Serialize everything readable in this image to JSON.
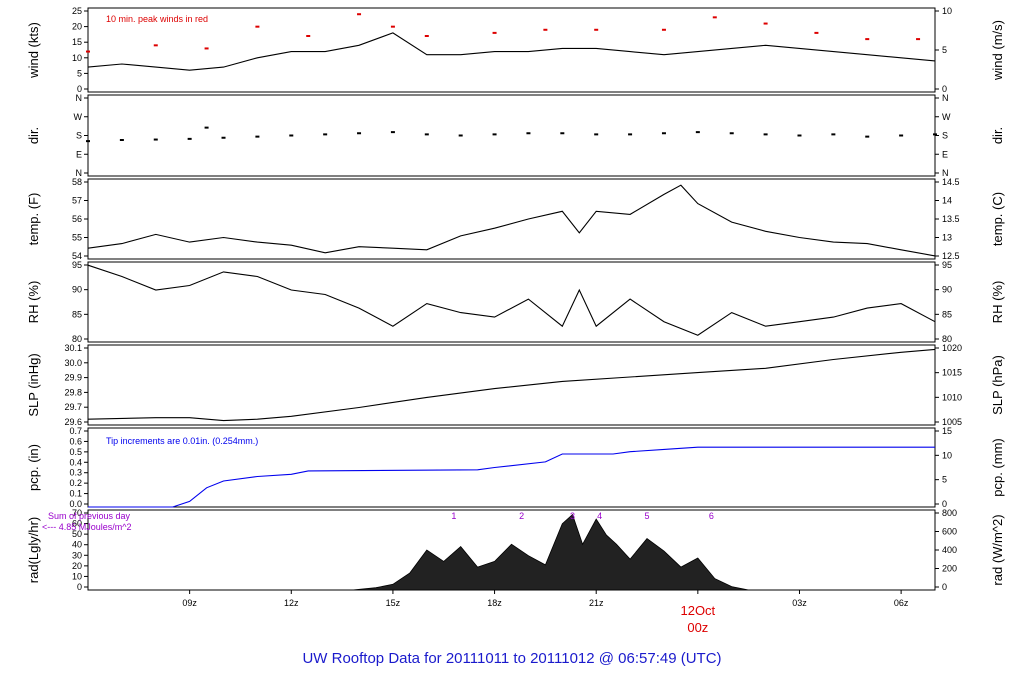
{
  "footer": {
    "title_text": "UW Rooftop Data for 20111011  to  20111012 @ 06:57:49  (UTC)"
  },
  "colors": {
    "line": "#000000",
    "peak": "#dd0000",
    "precip": "#0000ee",
    "annotation_purple": "#9900cc",
    "date_red": "#dd0000",
    "title_blue": "#1a1acc"
  },
  "chart_data": [
    {
      "type": "line",
      "panel": "wind",
      "ylabel_left": "wind (kts)",
      "ylabel_right": "wind (m/s)",
      "left_ticks": [
        "0",
        "5",
        "10",
        "15",
        "20",
        "25"
      ],
      "right_ticks": [
        "0",
        "5",
        "10"
      ],
      "ylim": [
        0,
        27
      ],
      "annotation": "10 min. peak winds in red",
      "series": [
        {
          "x_hours": [
            6,
            7,
            8,
            9,
            10,
            11,
            12,
            13,
            14,
            15,
            16,
            17,
            18,
            19,
            20,
            21,
            22,
            23,
            24,
            25,
            26,
            27,
            28,
            29,
            30,
            31
          ],
          "values": [
            8,
            9,
            8,
            7,
            8,
            11,
            13,
            13,
            15,
            19,
            12,
            12,
            13,
            13,
            14,
            14,
            13,
            12,
            13,
            14,
            15,
            14,
            13,
            12,
            11,
            10
          ]
        }
      ],
      "peaks": {
        "x_hours": [
          6,
          8,
          9.5,
          11,
          12.5,
          14,
          15,
          16,
          18,
          19.5,
          21,
          23,
          24.5,
          26,
          27.5,
          29,
          30.5
        ],
        "values": [
          13,
          15,
          14,
          21,
          18,
          25,
          21,
          18,
          19,
          20,
          20,
          20,
          24,
          22,
          19,
          17,
          17
        ]
      }
    },
    {
      "type": "scatter",
      "panel": "dir",
      "ylabel_left": "dir.",
      "ylabel_right": "dir.",
      "left_ticks": [
        "N",
        "E",
        "S",
        "W",
        "N"
      ],
      "right_ticks": [
        "N",
        "E",
        "S",
        "W",
        "N"
      ],
      "ylim": [
        0,
        360
      ],
      "series": [
        {
          "x_hours": [
            6,
            7,
            8,
            9,
            9.5,
            10,
            11,
            12,
            13,
            14,
            15,
            16,
            17,
            18,
            19,
            20,
            21,
            22,
            23,
            24,
            25,
            26,
            27,
            28,
            29,
            30,
            31
          ],
          "values": [
            155,
            160,
            162,
            165,
            215,
            170,
            175,
            180,
            185,
            190,
            195,
            185,
            180,
            185,
            190,
            190,
            185,
            185,
            190,
            195,
            190,
            185,
            180,
            185,
            175,
            180,
            185
          ]
        }
      ]
    },
    {
      "type": "line",
      "panel": "temp",
      "ylabel_left": "temp. (F)",
      "ylabel_right": "temp. (C)",
      "left_ticks": [
        "54",
        "55",
        "56",
        "57",
        "58"
      ],
      "right_ticks": [
        "12.5",
        "13",
        "13.5",
        "14",
        "14.5"
      ],
      "ylim": [
        53.9,
        59.1
      ],
      "series": [
        {
          "x_hours": [
            6,
            7,
            8,
            9,
            10,
            11,
            12,
            13,
            14,
            15,
            16,
            17,
            18,
            19,
            20,
            20.5,
            21,
            22,
            23,
            23.5,
            24,
            25,
            26,
            27,
            28,
            29,
            30,
            31
          ],
          "values": [
            54.6,
            54.9,
            55.5,
            55.0,
            55.3,
            55.0,
            54.8,
            54.3,
            54.7,
            54.6,
            54.5,
            55.4,
            55.9,
            56.5,
            57.0,
            55.6,
            57.0,
            56.8,
            58.1,
            58.7,
            57.5,
            56.3,
            55.7,
            55.3,
            55.0,
            54.9,
            54.5,
            54.1
          ]
        }
      ]
    },
    {
      "type": "line",
      "panel": "rh",
      "ylabel_left": "RH (%)",
      "ylabel_right": "RH (%)",
      "left_ticks": [
        "80",
        "85",
        "90",
        "95"
      ],
      "right_ticks": [
        "80",
        "85",
        "90",
        "95"
      ],
      "ylim": [
        77.5,
        95.2
      ],
      "series": [
        {
          "x_hours": [
            6,
            7,
            8,
            9,
            10,
            11,
            12,
            13,
            14,
            15,
            16,
            17,
            18,
            19,
            20,
            20.5,
            21,
            22,
            23,
            24,
            25,
            26,
            27,
            28,
            29,
            30,
            31
          ],
          "values": [
            94.5,
            92,
            89,
            90,
            93,
            92,
            89,
            88,
            85,
            81,
            86,
            84,
            83,
            87,
            81,
            89,
            81,
            87,
            82,
            79,
            84,
            81,
            82,
            83,
            85,
            86,
            82
          ]
        }
      ]
    },
    {
      "type": "line",
      "panel": "slp",
      "ylabel_left": "SLP (inHg)",
      "ylabel_right": "SLP (hPa)",
      "left_ticks": [
        "29.6",
        "29.7",
        "29.8",
        "29.9",
        "30.0",
        "30.1"
      ],
      "right_ticks": [
        "1005",
        "1010",
        "1015",
        "1020"
      ],
      "ylim": [
        29.6,
        30.15
      ],
      "series": [
        {
          "x_hours": [
            6,
            8,
            9,
            10,
            11,
            12,
            14,
            16,
            18,
            20,
            22,
            24,
            26,
            28,
            30,
            31
          ],
          "values": [
            29.64,
            29.65,
            29.65,
            29.63,
            29.64,
            29.66,
            29.72,
            29.79,
            29.85,
            29.9,
            29.93,
            29.96,
            29.99,
            30.05,
            30.1,
            30.12
          ]
        }
      ]
    },
    {
      "type": "line",
      "panel": "pcp",
      "ylabel_left": "pcp. (in)",
      "ylabel_right": "pcp. (mm)",
      "left_ticks": [
        "0.0",
        "0.1",
        "0.2",
        "0.3",
        "0.4",
        "0.5",
        "0.6",
        "0.7"
      ],
      "right_ticks": [
        "0",
        "5",
        "10",
        "15"
      ],
      "ylim": [
        0,
        0.7
      ],
      "annotation": "Tip increments are 0.01in. (0.254mm.)",
      "series": [
        {
          "x_hours": [
            6,
            8.5,
            9,
            9.5,
            10,
            11,
            12,
            12.5,
            17.5,
            18,
            19.5,
            20,
            21.5,
            22,
            23,
            24,
            31
          ],
          "values": [
            0,
            0,
            0.05,
            0.17,
            0.23,
            0.27,
            0.29,
            0.32,
            0.33,
            0.35,
            0.4,
            0.47,
            0.47,
            0.49,
            0.51,
            0.53,
            0.53
          ]
        }
      ]
    },
    {
      "type": "area",
      "panel": "rad",
      "ylabel_left": "rad(Lgly/hr)",
      "ylabel_right": "rad (W/m^2)",
      "left_ticks": [
        "0",
        "10",
        "20",
        "30",
        "40",
        "50",
        "60",
        "70"
      ],
      "right_ticks": [
        "0",
        "200",
        "400",
        "600",
        "800"
      ],
      "ylim": [
        0,
        70
      ],
      "annotation": [
        "Sum of previous day",
        "<--- 4.85 MJoules/m^2"
      ],
      "hour_markers": [
        {
          "label": "1",
          "x_hour": 16.8
        },
        {
          "label": "2",
          "x_hour": 18.8
        },
        {
          "label": "3",
          "x_hour": 20.3
        },
        {
          "label": "4",
          "x_hour": 21.1
        },
        {
          "label": "5",
          "x_hour": 22.5
        },
        {
          "label": "6",
          "x_hour": 24.4
        }
      ],
      "series": [
        {
          "x_hours": [
            13.8,
            14.5,
            15,
            15.5,
            16,
            16.5,
            17,
            17.5,
            18,
            18.5,
            19,
            19.5,
            20,
            20.3,
            20.6,
            21,
            21.3,
            21.6,
            22,
            22.5,
            23,
            23.5,
            24,
            24.5,
            25,
            25.5
          ],
          "values": [
            0,
            2,
            5,
            15,
            35,
            25,
            38,
            20,
            25,
            40,
            30,
            22,
            58,
            66,
            40,
            62,
            48,
            40,
            27,
            45,
            34,
            20,
            28,
            10,
            3,
            0
          ]
        }
      ]
    }
  ],
  "x_axis": {
    "ticks": [
      {
        "label": "09z",
        "x_hour": 9
      },
      {
        "label": "12z",
        "x_hour": 12
      },
      {
        "label": "15z",
        "x_hour": 15
      },
      {
        "label": "18z",
        "x_hour": 18
      },
      {
        "label": "21z",
        "x_hour": 21
      },
      {
        "label": "03z",
        "x_hour": 27
      },
      {
        "label": "06z",
        "x_hour": 30
      }
    ],
    "date_label": {
      "day": "12Oct",
      "hour": "00z",
      "x_hour": 24
    }
  }
}
